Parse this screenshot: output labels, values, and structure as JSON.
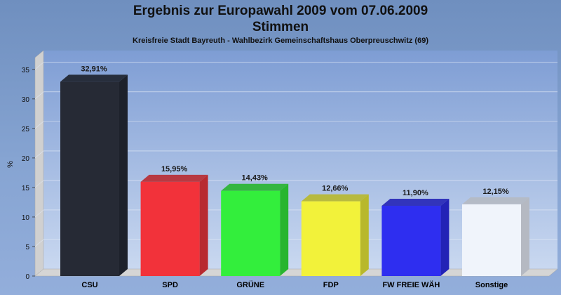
{
  "chart_data": {
    "type": "bar",
    "title": "Ergebnis zur Europawahl 2009 vom 07.06.2009",
    "title2": "Stimmen",
    "subtitle": "Kreisfreie Stadt Bayreuth - Wahlbezirk Gemeinschaftshaus Oberpreuschwitz (69)",
    "ylabel": "%",
    "xlabel": "",
    "ylim": [
      0,
      37
    ],
    "yticks": [
      0,
      5,
      10,
      15,
      20,
      25,
      30,
      35
    ],
    "grid": true,
    "categories": [
      "CSU",
      "SPD",
      "GRÜNE",
      "FDP",
      "FW FREIE WÄH",
      "Sonstige"
    ],
    "values": [
      32.91,
      15.95,
      14.43,
      12.66,
      11.9,
      12.15
    ],
    "value_labels": [
      "32,91%",
      "15,95%",
      "14,43%",
      "12,66%",
      "11,90%",
      "12,15%"
    ],
    "colors": [
      "#262a35",
      "#f2323a",
      "#33ee3c",
      "#f2f23a",
      "#2e2ef0",
      "#f0f4fb"
    ],
    "colors_dark": [
      "#1d212b",
      "#b82a30",
      "#28b52f",
      "#b8b82c",
      "#2323b6",
      "#b5b9c2"
    ]
  }
}
